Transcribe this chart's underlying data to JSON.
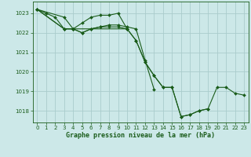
{
  "title": "Graphe pression niveau de la mer (hPa)",
  "bg_color": "#cce8e8",
  "grid_color": "#aacccc",
  "line_color": "#1a5c1a",
  "marker_color": "#1a5c1a",
  "xlim": [
    -0.5,
    23.5
  ],
  "ylim": [
    1017.4,
    1023.6
  ],
  "yticks": [
    1018,
    1019,
    1020,
    1021,
    1022,
    1023
  ],
  "xticks": [
    0,
    1,
    2,
    3,
    4,
    5,
    6,
    7,
    8,
    9,
    10,
    11,
    12,
    13,
    14,
    15,
    16,
    17,
    18,
    19,
    20,
    21,
    22,
    23
  ],
  "series": [
    {
      "x": [
        0,
        1,
        2,
        3,
        4,
        5,
        6,
        7,
        8,
        9,
        10,
        11,
        12,
        13,
        14,
        15,
        16,
        17,
        18,
        19
      ],
      "y": [
        1023.2,
        1023.0,
        1022.8,
        1022.2,
        1022.2,
        1022.0,
        1022.2,
        1022.3,
        1022.3,
        1022.3,
        1022.2,
        1021.6,
        1020.5,
        1019.8,
        1019.2,
        1019.2,
        1017.7,
        1017.8,
        1018.0,
        1018.1
      ]
    },
    {
      "x": [
        0,
        3,
        4,
        5,
        6,
        7,
        8,
        9,
        10
      ],
      "y": [
        1023.2,
        1022.8,
        1022.2,
        1022.5,
        1022.8,
        1022.9,
        1022.9,
        1023.0,
        1022.2
      ]
    },
    {
      "x": [
        0,
        3,
        4,
        5,
        6,
        7,
        8,
        9,
        10,
        11,
        12,
        13
      ],
      "y": [
        1023.2,
        1022.2,
        1022.2,
        1022.0,
        1022.2,
        1022.3,
        1022.4,
        1022.4,
        1022.3,
        1022.2,
        1020.6,
        1019.1
      ]
    },
    {
      "x": [
        0,
        3,
        4,
        10,
        11,
        12,
        13,
        14,
        15,
        16,
        17,
        18,
        19,
        20,
        21,
        22,
        23
      ],
      "y": [
        1023.2,
        1022.2,
        1022.2,
        1022.2,
        1021.6,
        1020.5,
        1019.8,
        1019.2,
        1019.2,
        1017.7,
        1017.8,
        1018.0,
        1018.1,
        1019.2,
        1019.2,
        1018.9,
        1018.8
      ]
    }
  ]
}
